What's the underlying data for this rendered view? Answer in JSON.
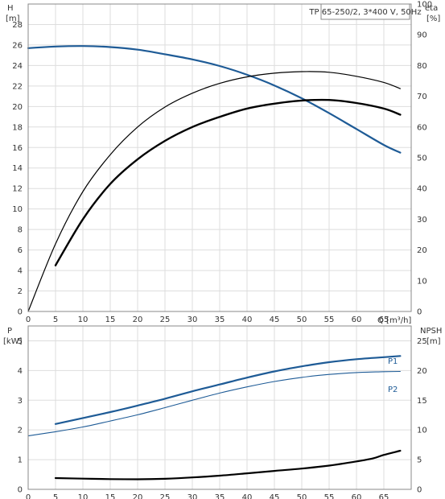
{
  "title": "TP 65-250/2, 3*400 V, 50Hz",
  "colors": {
    "blue": "#1e5b96",
    "black": "#000000"
  },
  "chart_data": [
    {
      "type": "line",
      "x_axis": {
        "label": "Q [m³/h]",
        "range": [
          0,
          70
        ],
        "ticks": [
          0,
          5,
          10,
          15,
          20,
          25,
          30,
          35,
          40,
          45,
          50,
          55,
          60,
          65
        ]
      },
      "y_left": {
        "label_top": "H",
        "label_unit": "[m]",
        "range": [
          0,
          30
        ],
        "ticks": [
          0,
          2,
          4,
          6,
          8,
          10,
          12,
          14,
          16,
          18,
          20,
          22,
          24,
          26,
          28
        ]
      },
      "y_right": {
        "label_top": "eta",
        "label_unit": "[%]",
        "range": [
          0,
          100
        ],
        "ticks": [
          0,
          10,
          20,
          30,
          40,
          50,
          60,
          70,
          80,
          90,
          100
        ]
      },
      "grid": true,
      "series": [
        {
          "key": "H",
          "axis": "left",
          "color": "#1e5b96",
          "width": 2.2,
          "x": [
            0,
            5,
            10,
            15,
            20,
            25,
            30,
            35,
            40,
            45,
            50,
            55,
            60,
            65,
            68
          ],
          "y": [
            25.7,
            25.85,
            25.9,
            25.8,
            25.55,
            25.1,
            24.6,
            23.95,
            23.1,
            22.05,
            20.8,
            19.35,
            17.8,
            16.25,
            15.5
          ]
        },
        {
          "key": "eta_total_thin",
          "axis": "right",
          "color": "#000000",
          "width": 1.2,
          "x": [
            0,
            5,
            10,
            15,
            20,
            25,
            30,
            35,
            40,
            45,
            50,
            55,
            60,
            65,
            68
          ],
          "y": [
            0,
            22,
            39,
            51,
            60,
            66.5,
            71,
            74.2,
            76.3,
            77.5,
            78,
            77.8,
            76.5,
            74.5,
            72.5
          ]
        },
        {
          "key": "eta_total_thick",
          "axis": "right",
          "color": "#000000",
          "width": 2.4,
          "x": [
            5,
            10,
            15,
            20,
            25,
            30,
            35,
            40,
            45,
            50,
            55,
            60,
            65,
            68
          ],
          "y": [
            15,
            30,
            41.5,
            49.5,
            55.5,
            60,
            63.3,
            66,
            67.6,
            68.6,
            68.8,
            67.8,
            66,
            64
          ]
        }
      ]
    },
    {
      "type": "line",
      "x_axis": {
        "range": [
          0,
          70
        ],
        "ticks": [
          0,
          5,
          10,
          15,
          20,
          25,
          30,
          35,
          40,
          45,
          50,
          55,
          60,
          65
        ]
      },
      "y_left": {
        "label_top": "P",
        "label_unit": "[kW]",
        "range": [
          0,
          5.5
        ],
        "ticks": [
          0,
          1,
          2,
          3,
          4,
          5
        ]
      },
      "y_right": {
        "label_top": "NPSH",
        "label_unit": "[m]",
        "range": [
          0,
          27.5
        ],
        "ticks": [
          0,
          5,
          10,
          15,
          20,
          25
        ]
      },
      "grid": true,
      "series": [
        {
          "name": "P1",
          "key": "P1",
          "axis": "left",
          "color": "#1e5b96",
          "width": 2.2,
          "x": [
            5,
            10,
            15,
            20,
            25,
            30,
            35,
            40,
            45,
            50,
            55,
            60,
            65,
            68
          ],
          "y": [
            2.2,
            2.4,
            2.6,
            2.82,
            3.05,
            3.3,
            3.53,
            3.76,
            3.97,
            4.14,
            4.28,
            4.38,
            4.45,
            4.49
          ]
        },
        {
          "name": "P2",
          "key": "P2",
          "axis": "left",
          "color": "#1e5b96",
          "width": 1.1,
          "x": [
            0,
            5,
            10,
            15,
            20,
            25,
            30,
            35,
            40,
            45,
            50,
            55,
            60,
            65,
            68
          ],
          "y": [
            1.8,
            1.94,
            2.1,
            2.3,
            2.51,
            2.75,
            3.0,
            3.24,
            3.45,
            3.63,
            3.77,
            3.87,
            3.93,
            3.96,
            3.97
          ]
        },
        {
          "key": "NPSH",
          "axis": "right",
          "color": "#000000",
          "width": 2.2,
          "x": [
            5,
            10,
            15,
            20,
            25,
            30,
            35,
            40,
            45,
            50,
            55,
            60,
            63,
            65,
            68
          ],
          "y": [
            1.9,
            1.8,
            1.72,
            1.7,
            1.78,
            2.0,
            2.3,
            2.7,
            3.1,
            3.5,
            4.0,
            4.7,
            5.2,
            5.8,
            6.5
          ]
        }
      ]
    }
  ]
}
